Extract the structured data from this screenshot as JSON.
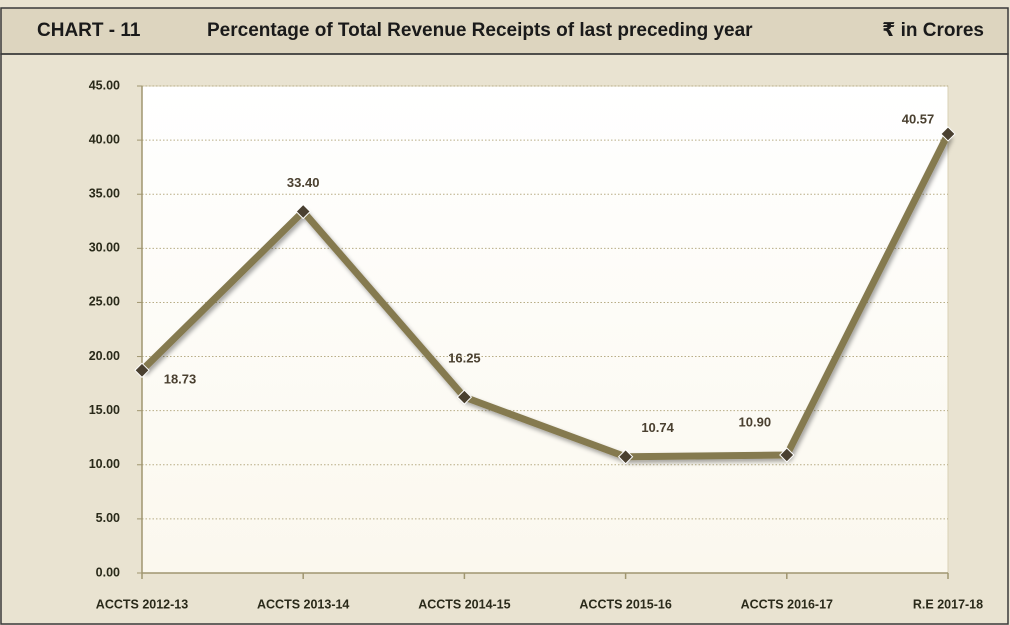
{
  "header": {
    "chart_no": "CHART - 11",
    "unit": "₹ in Crores"
  },
  "chart_data": {
    "type": "line",
    "title": "Percentage of Total Revenue Receipts of last preceding year",
    "categories": [
      "ACCTS 2012-13",
      "ACCTS 2013-14",
      "ACCTS 2014-15",
      "ACCTS 2015-16",
      "ACCTS 2016-17",
      "R.E 2017-18"
    ],
    "values": [
      18.73,
      33.4,
      16.25,
      10.74,
      10.9,
      40.57
    ],
    "value_labels": [
      "18.73",
      "33.40",
      "16.25",
      "10.74",
      "10.90",
      "40.57"
    ],
    "color": "#857a50",
    "marker_color": "#4a4030",
    "ylim": [
      0,
      45
    ],
    "yticks": [
      {
        "value": 0,
        "label": "0.00"
      },
      {
        "value": 5,
        "label": "5.00"
      },
      {
        "value": 10,
        "label": "10.00"
      },
      {
        "value": 15,
        "label": "15.00"
      },
      {
        "value": 20,
        "label": "20.00"
      },
      {
        "value": 25,
        "label": "25.00"
      },
      {
        "value": 30,
        "label": "30.00"
      },
      {
        "value": 35,
        "label": "35.00"
      },
      {
        "value": 40,
        "label": "40.00"
      },
      {
        "value": 45,
        "label": "45.00"
      }
    ],
    "grid": true
  }
}
